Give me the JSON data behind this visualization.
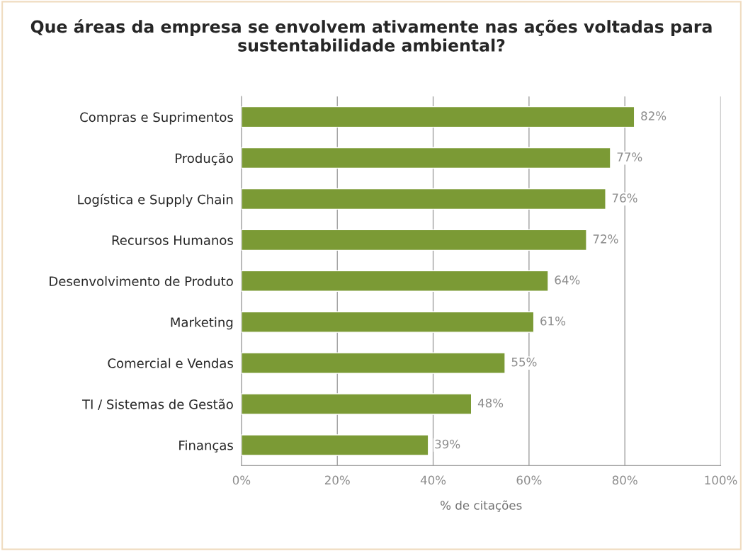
{
  "chart_data": {
    "type": "bar",
    "orientation": "horizontal",
    "title": "Que áreas da empresa se envolvem ativamente nas ações voltadas para sustentabilidade ambiental?",
    "xlabel": "% de citações",
    "categories": [
      "Compras e Suprimentos",
      "Produção",
      "Logística e Supply Chain",
      "Recursos Humanos",
      "Desenvolvimento de Produto",
      "Marketing",
      "Comercial e Vendas",
      "TI / Sistemas de Gestão",
      "Finanças"
    ],
    "values": [
      82,
      77,
      76,
      72,
      64,
      61,
      55,
      48,
      39
    ],
    "value_labels": [
      "82%",
      "77%",
      "76%",
      "72%",
      "64%",
      "61%",
      "55%",
      "48%",
      "39%"
    ],
    "color": "#7b9a35",
    "xlim": [
      0,
      100
    ],
    "xticks": [
      {
        "value": 0,
        "label": "0%"
      },
      {
        "value": 20,
        "label": "20%"
      },
      {
        "value": 40,
        "label": "40%"
      },
      {
        "value": 60,
        "label": "60%"
      },
      {
        "value": 80,
        "label": "80%"
      },
      {
        "value": 100,
        "label": "100%"
      }
    ],
    "grid": "x",
    "legend": false
  }
}
